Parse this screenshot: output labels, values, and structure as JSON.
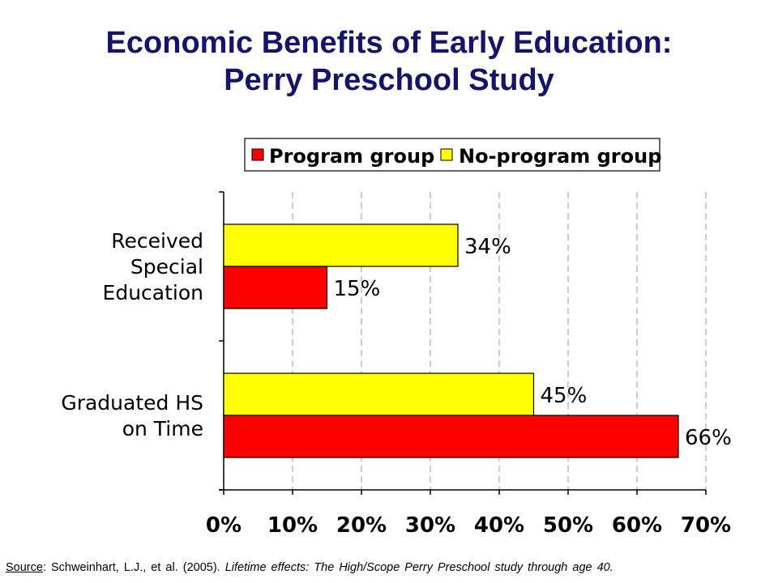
{
  "title": {
    "line1": "Economic Benefits of Early Education:",
    "line2": "Perry Preschool Study"
  },
  "source": {
    "label": "Source",
    "authors": ": Schweinhart, L.J., et al. (2005). ",
    "work": "Lifetime effects: The High/Scope Perry Preschool study through age 40."
  },
  "colors": {
    "program": "#ff0000",
    "no_program": "#ffff00",
    "title": "#14146e"
  },
  "chart_data": {
    "type": "bar",
    "orientation": "horizontal",
    "categories": [
      "Received Special Education",
      "Graduated HS on Time"
    ],
    "category_lines": [
      [
        "Received",
        "Special",
        "Education"
      ],
      [
        "Graduated HS",
        "on Time"
      ]
    ],
    "series": [
      {
        "name": "Program group",
        "values": [
          15,
          66
        ],
        "labels": [
          "15%",
          "66%"
        ],
        "color": "#ff0000"
      },
      {
        "name": "No-program group",
        "values": [
          34,
          45
        ],
        "labels": [
          "34%",
          "45%"
        ],
        "color": "#ffff00"
      }
    ],
    "xlim": [
      0,
      70
    ],
    "xticks": [
      0,
      10,
      20,
      30,
      40,
      50,
      60,
      70
    ],
    "xtick_labels": [
      "0%",
      "10%",
      "20%",
      "30%",
      "40%",
      "50%",
      "60%",
      "70%"
    ],
    "grid": "vertical dashed",
    "legend_position": "top"
  }
}
